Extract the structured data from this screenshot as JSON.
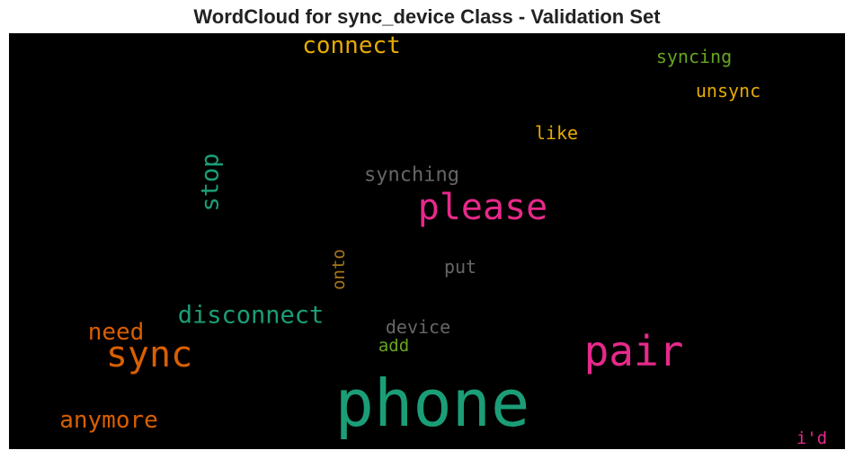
{
  "chart_data": {
    "type": "wordcloud",
    "title": "WordCloud for sync_device Class - Validation Set",
    "background": "#000000",
    "words": [
      {
        "text": "phone",
        "weight": 1.0,
        "color": "#1b9e77",
        "vertical": false
      },
      {
        "text": "pair",
        "weight": 0.64,
        "color": "#e7298a",
        "vertical": false
      },
      {
        "text": "please",
        "weight": 0.56,
        "color": "#e7298a",
        "vertical": false
      },
      {
        "text": "sync",
        "weight": 0.56,
        "color": "#d95f02",
        "vertical": false
      },
      {
        "text": "disconnect",
        "weight": 0.38,
        "color": "#1b9e77",
        "vertical": false
      },
      {
        "text": "stop",
        "weight": 0.38,
        "color": "#1b9e77",
        "vertical": true
      },
      {
        "text": "connect",
        "weight": 0.36,
        "color": "#e6ab02",
        "vertical": false
      },
      {
        "text": "need",
        "weight": 0.36,
        "color": "#d95f02",
        "vertical": false
      },
      {
        "text": "anymore",
        "weight": 0.36,
        "color": "#d95f02",
        "vertical": false
      },
      {
        "text": "synching",
        "weight": 0.3,
        "color": "#666666",
        "vertical": false
      },
      {
        "text": "device",
        "weight": 0.28,
        "color": "#666666",
        "vertical": false
      },
      {
        "text": "syncing",
        "weight": 0.28,
        "color": "#66a61e",
        "vertical": false
      },
      {
        "text": "unsync",
        "weight": 0.28,
        "color": "#e6ab02",
        "vertical": false
      },
      {
        "text": "like",
        "weight": 0.28,
        "color": "#e6ab02",
        "vertical": false
      },
      {
        "text": "put",
        "weight": 0.28,
        "color": "#666666",
        "vertical": false
      },
      {
        "text": "add",
        "weight": 0.26,
        "color": "#66a61e",
        "vertical": false
      },
      {
        "text": "onto",
        "weight": 0.26,
        "color": "#a6761d",
        "vertical": true
      },
      {
        "text": "i'd",
        "weight": 0.26,
        "color": "#e7298a",
        "vertical": false
      }
    ]
  }
}
